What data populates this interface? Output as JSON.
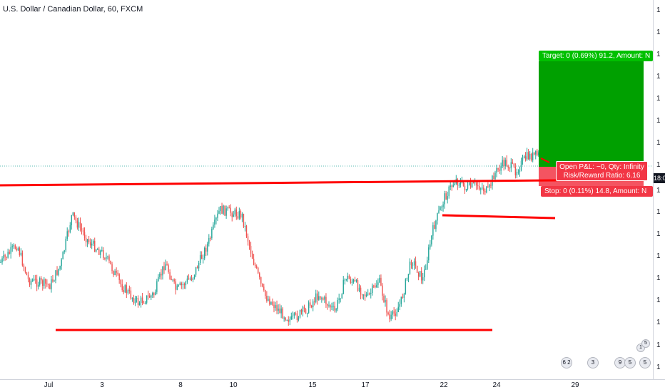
{
  "title": "U.S. Dollar / Canadian Dollar, 60, FXCM",
  "chart_data": {
    "type": "candlestick",
    "symbol": "U.S. Dollar / Canadian Dollar",
    "interval": "60",
    "source": "FXCM",
    "x_ticks": [
      "Jul",
      "3",
      "8",
      "10",
      "15",
      "17",
      "22",
      "24",
      "29"
    ],
    "y_ticks": [
      "1",
      "1",
      "1",
      "1",
      "1",
      "1",
      "1",
      "1",
      "1",
      "1",
      "1",
      "1",
      "1",
      "1",
      "1",
      "1",
      "1"
    ],
    "current_price_label": "1",
    "countdown_label": "18:0",
    "price_path": [
      {
        "x": 0,
        "y": 0.62
      },
      {
        "x": 0.03,
        "y": 0.52
      },
      {
        "x": 0.05,
        "y": 0.72
      },
      {
        "x": 0.09,
        "y": 0.75
      },
      {
        "x": 0.11,
        "y": 0.63
      },
      {
        "x": 0.13,
        "y": 0.35
      },
      {
        "x": 0.16,
        "y": 0.5
      },
      {
        "x": 0.19,
        "y": 0.58
      },
      {
        "x": 0.22,
        "y": 0.75
      },
      {
        "x": 0.25,
        "y": 0.85
      },
      {
        "x": 0.28,
        "y": 0.8
      },
      {
        "x": 0.3,
        "y": 0.62
      },
      {
        "x": 0.32,
        "y": 0.78
      },
      {
        "x": 0.35,
        "y": 0.7
      },
      {
        "x": 0.38,
        "y": 0.5
      },
      {
        "x": 0.4,
        "y": 0.32
      },
      {
        "x": 0.44,
        "y": 0.35
      },
      {
        "x": 0.46,
        "y": 0.6
      },
      {
        "x": 0.48,
        "y": 0.8
      },
      {
        "x": 0.51,
        "y": 0.9
      },
      {
        "x": 0.53,
        "y": 0.95
      },
      {
        "x": 0.56,
        "y": 0.88
      },
      {
        "x": 0.58,
        "y": 0.8
      },
      {
        "x": 0.61,
        "y": 0.9
      },
      {
        "x": 0.63,
        "y": 0.7
      },
      {
        "x": 0.65,
        "y": 0.75
      },
      {
        "x": 0.67,
        "y": 0.82
      },
      {
        "x": 0.69,
        "y": 0.72
      },
      {
        "x": 0.71,
        "y": 0.95
      },
      {
        "x": 0.73,
        "y": 0.85
      },
      {
        "x": 0.75,
        "y": 0.6
      },
      {
        "x": 0.77,
        "y": 0.72
      },
      {
        "x": 0.79,
        "y": 0.42
      },
      {
        "x": 0.81,
        "y": 0.25
      },
      {
        "x": 0.83,
        "y": 0.15
      },
      {
        "x": 0.85,
        "y": 0.2
      },
      {
        "x": 0.87,
        "y": 0.18
      },
      {
        "x": 0.89,
        "y": 0.22
      },
      {
        "x": 0.9,
        "y": 0.12
      },
      {
        "x": 0.92,
        "y": 0.05
      },
      {
        "x": 0.94,
        "y": 0.1
      },
      {
        "x": 0.96,
        "y": 0.02
      },
      {
        "x": 1,
        "y": 0.0
      }
    ],
    "colors": {
      "up": "#26a69a",
      "down": "#ef5350",
      "trendline": "#ff0000",
      "target": "#00a000",
      "stop": "#f23645"
    }
  },
  "position": {
    "target_label": "Target: 0 (0.69%) 91.2, Amount: N",
    "stop_label": "Stop: 0 (0.11%) 14.8, Amount: N",
    "pnl_line1": "Open P&L: −0, Qty: Infinity",
    "pnl_line2": "Risk/Reward Ratio: 6.16"
  },
  "events": [
    "6 2",
    "3",
    "9",
    "5",
    "5",
    "1",
    "5"
  ]
}
